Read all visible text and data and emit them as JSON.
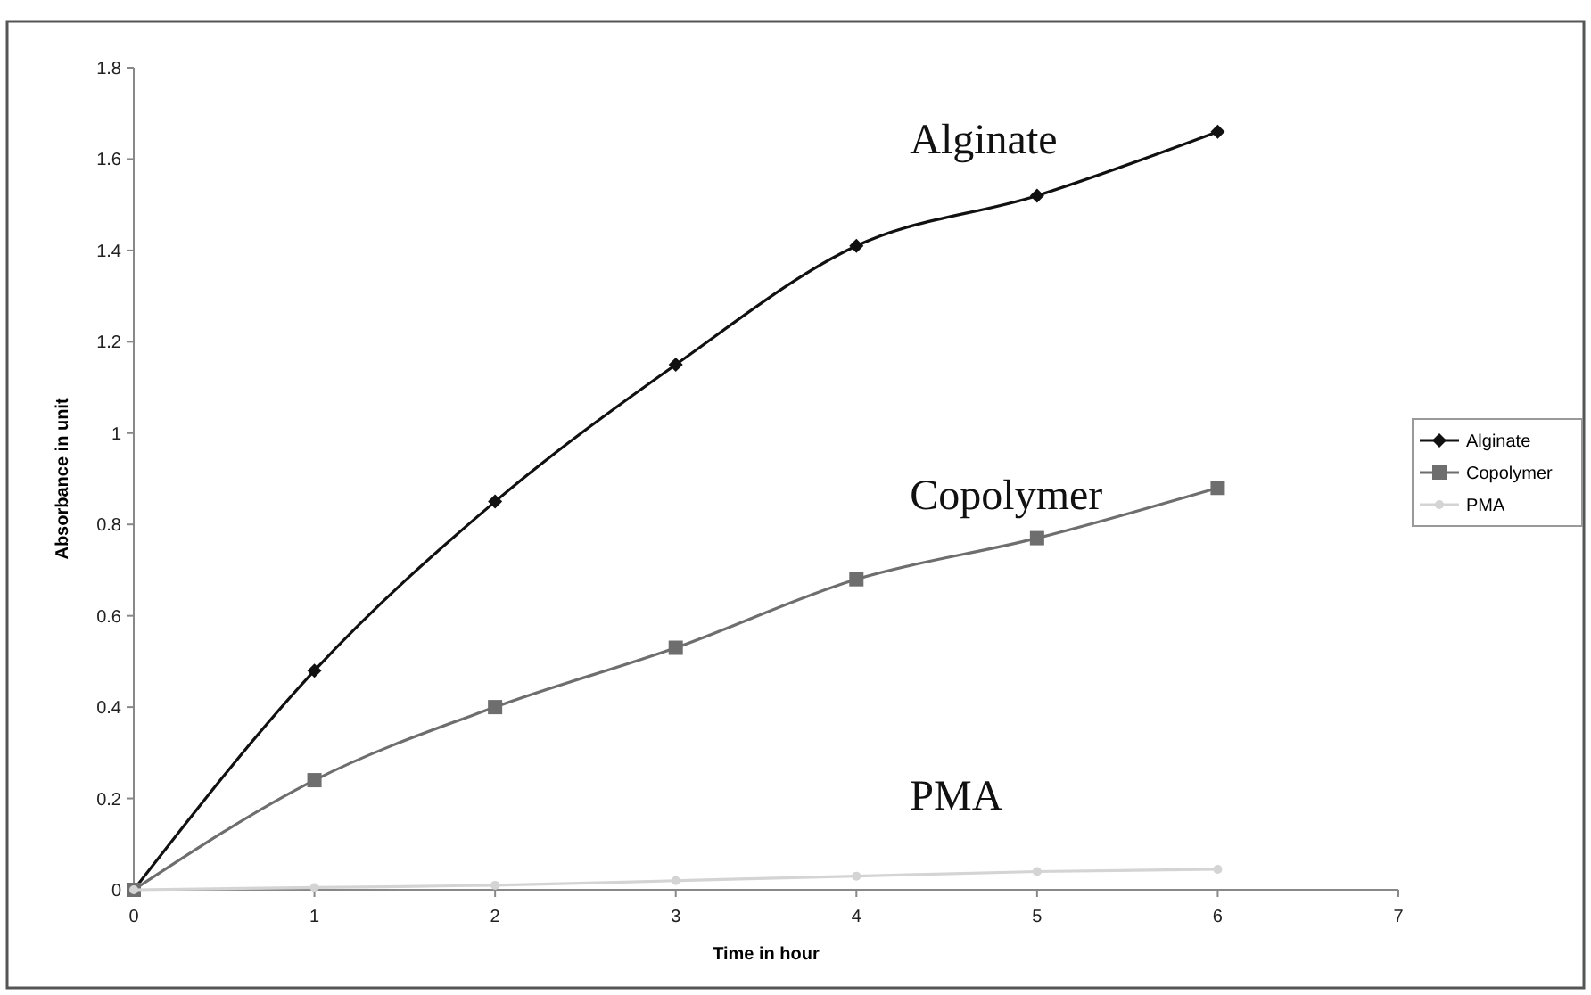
{
  "chart_data": {
    "type": "line",
    "xlabel": "Time in hour",
    "ylabel": "Absorbance in unit",
    "x": [
      0,
      1,
      2,
      3,
      4,
      5,
      6
    ],
    "series": [
      {
        "name": "Alginate",
        "color": "#111111",
        "marker": "diamond",
        "values": [
          0,
          0.48,
          0.85,
          1.15,
          1.41,
          1.52,
          1.66
        ]
      },
      {
        "name": "Copolymer",
        "color": "#6e6e6e",
        "marker": "square",
        "values": [
          0,
          0.24,
          0.4,
          0.53,
          0.68,
          0.77,
          0.88
        ]
      },
      {
        "name": "PMA",
        "color": "#d4d4d4",
        "marker": "circle",
        "values": [
          0,
          0.005,
          0.01,
          0.02,
          0.03,
          0.04,
          0.045
        ]
      }
    ],
    "xlim": [
      0,
      7
    ],
    "xticks": [
      0,
      1,
      2,
      3,
      4,
      5,
      6,
      7
    ],
    "ylim": [
      0,
      1.8
    ],
    "yticks": [
      0,
      0.2,
      0.4,
      0.6,
      0.8,
      1,
      1.2,
      1.4,
      1.6,
      1.8
    ],
    "grid": false,
    "legend": "right",
    "line_style": "solid"
  }
}
